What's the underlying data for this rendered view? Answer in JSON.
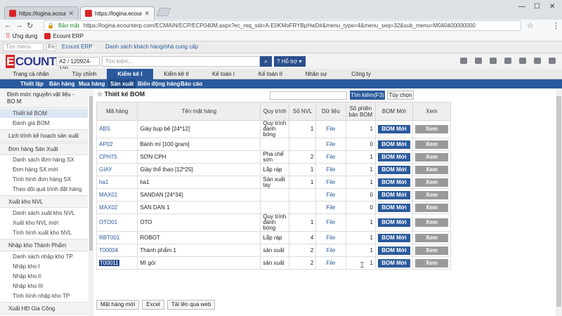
{
  "browser": {
    "tabs": [
      {
        "title": "https://logina.ecounterp.com"
      },
      {
        "title": "https://logina.ecounterp.com"
      }
    ],
    "security_label": "Bảo mật",
    "url": "https://logina.ecounterp.com/ECMAIN/ECP/ECP040M.aspx?ec_req_sid=A-E0KMoFRYBpHwD#&menu_type=4&menu_seq=32&sub_menu=M040400000000",
    "bookmarks": [
      "Ứng dụng",
      "Ecount ERP"
    ]
  },
  "appbar": {
    "menu_search_placeholder": "Tìm menu",
    "fn_label": "Fn",
    "erp_label": "Ecount ERP",
    "favorite_label": "Danh sách khách hàng/nhà cung cấp",
    "logo": "COUNT",
    "logo_e": "E",
    "company": "A2 / 120924-100",
    "search_placeholder": "Tìm kiếm...",
    "help_label": "Hỗ trợ"
  },
  "mainnav": [
    "Trang cá nhân",
    "Tùy chỉnh",
    "Kiểm kê I",
    "Kiểm kê II",
    "Kế toán I",
    "Kế toán II",
    "Nhân sự",
    "Công ty"
  ],
  "subnav": [
    "Thiết lập",
    "Bán hàng",
    "Mua hàng",
    "Sản xuất",
    "Biến động hàng",
    "Báo cáo"
  ],
  "sidebar": {
    "g1": "Định mức nguyên vật liệu - BO M",
    "g1_items": [
      "Thiết kế BOM",
      "Đánh giá BOM"
    ],
    "g2": "Lịch trình kế hoạch sản xuất",
    "g3": "Đơn hàng Sản Xuất",
    "g3_items": [
      "Danh sách đơn hàng SX",
      "Đơn hàng SX mới",
      "Tình hình đơn hàng SX",
      "Theo dõi quá trình đặt hàng SX"
    ],
    "g4": "Xuất kho NVL",
    "g4_items": [
      "Danh sách xuất kho NVL",
      "Xuất kho NVL mới",
      "Tình hình xuất kho NVL"
    ],
    "g5": "Nhập kho Thành Phẩm",
    "g5_items": [
      "Danh sách nhập kho TP",
      "Nhập kho I",
      "Nhập kho II",
      "Nhập kho III",
      "Tình hình nhập kho TP"
    ],
    "g6": "Xuất HĐ Gia Công"
  },
  "page": {
    "title": "Thiết kế BOM",
    "find_label": "Tìm kiếm(F3)",
    "options_label": "Tùy chọn"
  },
  "table": {
    "headers": [
      "Mã hàng",
      "Tên mặt hàng",
      "Quy trình",
      "Số NVL",
      "Dữ liệu",
      "Số phiên bản BOM",
      "BOM Mới",
      "Xem"
    ],
    "rows": [
      {
        "code": "ABS",
        "name": "Giày bup bê [24*12]",
        "process": "Quy trình đánh bóng",
        "nvl": "1",
        "file": "File",
        "ver": "1",
        "bom": "BOM Mới",
        "view": "Xem"
      },
      {
        "code": "AP02",
        "name": "Bánh mì [100 gram]",
        "process": "",
        "nvl": "",
        "file": "File",
        "ver": "0",
        "bom": "BOM Mới",
        "view": "Xem"
      },
      {
        "code": "CPH75",
        "name": "SƠN CPH",
        "process": "Pha chế sơn",
        "nvl": "2",
        "file": "File",
        "ver": "1",
        "bom": "BOM Mới",
        "view": "Xem"
      },
      {
        "code": "GIAY",
        "name": "Giày thể thao [12*25]",
        "process": "Lắp ráp",
        "nvl": "1",
        "file": "File",
        "ver": "1",
        "bom": "BOM Mới",
        "view": "Xem"
      },
      {
        "code": "ha1",
        "name": "ha1",
        "process": "Sản xuất tay",
        "nvl": "1",
        "file": "File",
        "ver": "1",
        "bom": "BOM Mới",
        "view": "Xem"
      },
      {
        "code": "MAX01",
        "name": "SANDAN [24*34]",
        "process": "",
        "nvl": "",
        "file": "File",
        "ver": "0",
        "bom": "BOM Mới",
        "view": "Xem"
      },
      {
        "code": "MAX02",
        "name": "SAN DAN 1",
        "process": "",
        "nvl": "",
        "file": "File",
        "ver": "0",
        "bom": "BOM Mới",
        "view": "Xem"
      },
      {
        "code": "OTO01",
        "name": "OTO",
        "process": "Quy trình đánh bóng",
        "nvl": "1",
        "file": "File",
        "ver": "1",
        "bom": "BOM Mới",
        "view": "Xem"
      },
      {
        "code": "RBT001",
        "name": "ROBOT",
        "process": "Lắp ráp",
        "nvl": "4",
        "file": "File",
        "ver": "1",
        "bom": "BOM Mới",
        "view": "Xem"
      },
      {
        "code": "T00004",
        "name": "Thành phẩm 1",
        "process": "sản xuất",
        "nvl": "2",
        "file": "File",
        "ver": "1",
        "bom": "BOM Mới",
        "view": "Xem"
      },
      {
        "code": "T00011",
        "name": "Mì gói",
        "process": "sản xuất",
        "nvl": "2",
        "file": "File",
        "ver": "1",
        "bom": "BOM Mới",
        "view": "Xem"
      }
    ]
  },
  "footer": [
    "Mặt hàng mới",
    "Excel",
    "Tải lên qua web"
  ],
  "colors": {
    "primary": "#2a5a9c",
    "logo_red": "#d7262a",
    "view_button": "#9a9a9a"
  }
}
